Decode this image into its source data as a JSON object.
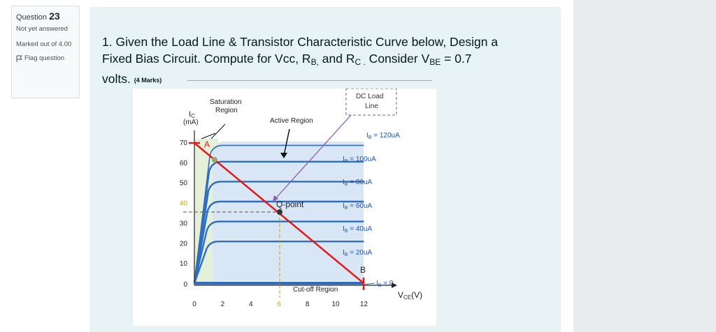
{
  "sidebar": {
    "question_label": "Question",
    "question_number": "23",
    "status": "Not yet answered",
    "marked_out_of": "Marked out of 4.00",
    "flag_label": "Flag question"
  },
  "question": {
    "line1": "1. Given the Load Line & Transistor Characteristic Curve below, Design a",
    "line2_a": "Fixed Bias Circuit. Compute for Vcc, R",
    "line2_sub_b": "B,",
    "line2_b": " and R",
    "line2_sub_c": "C .",
    "line2_c": " Consider V",
    "line2_sub_be": "BE",
    "line2_d": " = 0.7",
    "line3": "volts.",
    "marks": "(4 Marks)"
  },
  "chart_data": {
    "type": "line",
    "labels": {
      "saturation": [
        "Saturation",
        "Region"
      ],
      "active": "Active Region",
      "dc_load": [
        "DC Load",
        "Line"
      ],
      "cutoff": "Cut-off Region",
      "qpoint": "Q-point",
      "point_a": "A",
      "point_b": "B",
      "ylabel": [
        "I",
        "C",
        "(mA)"
      ],
      "xlabel_main": "V",
      "xlabel_sub": "CE",
      "xlabel_unit": "(V)"
    },
    "x_ticks": [
      "0",
      "2",
      "4",
      "6",
      "8",
      "10",
      "12"
    ],
    "y_ticks": [
      "10",
      "20",
      "30",
      "40",
      "50",
      "60",
      "70"
    ],
    "curves": [
      {
        "label": "I",
        "sub": "B",
        "value": "= 120uA"
      },
      {
        "label": "I",
        "sub": "B",
        "value": "= 100uA"
      },
      {
        "label": "I",
        "sub": "B",
        "value": "= 80uA"
      },
      {
        "label": "I",
        "sub": "B",
        "value": "= 60uA"
      },
      {
        "label": "I",
        "sub": "B",
        "value": "= 40uA"
      },
      {
        "label": "I",
        "sub": "B",
        "value": "= 20uA"
      },
      {
        "label": "I",
        "sub": "B",
        "value": "= 0"
      }
    ],
    "load_line": {
      "vce_intercept": 12,
      "ic_intercept_ma": 80
    },
    "q_point": {
      "vce": 6,
      "ic_ma": 40
    }
  }
}
